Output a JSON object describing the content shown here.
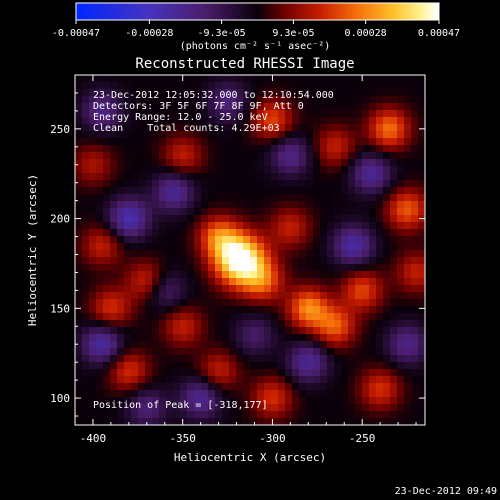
{
  "chart_data": {
    "type": "heatmap",
    "title": "Reconstructed RHESSI Image",
    "xlabel": "Heliocentric X (arcsec)",
    "ylabel": "Heliocentric Y (arcsec)",
    "xlim": [
      -410,
      -215
    ],
    "ylim": [
      85,
      280
    ],
    "x_ticks": [
      "-400",
      "-350",
      "-300",
      "-250"
    ],
    "x_tick_values": [
      -400,
      -350,
      -300,
      -250
    ],
    "y_ticks": [
      "100",
      "150",
      "200",
      "250"
    ],
    "y_tick_values": [
      100,
      150,
      200,
      250
    ],
    "colorbar": {
      "range": [
        -0.00047,
        0.00047
      ],
      "tick_labels": [
        "-0.00047",
        "-0.00028",
        "-9.3e-05",
        "9.3e-05",
        "0.00028",
        "0.00047"
      ],
      "tick_values": [
        -0.00047,
        -0.00028,
        -9.3e-05,
        9.3e-05,
        0.00028,
        0.00047
      ],
      "unit_label": "(photons cm⁻² s⁻¹ asec⁻²)"
    },
    "annotations": {
      "time_range": "23-Dec-2012 12:05:32.000 to 12:10:54.000",
      "detectors": "Detectors: 3F 5F 6F 7F 8F 9F, Att 0",
      "energy": "Energy Range: 12.0 - 25.0 keV",
      "algorithm": "Clean    Total counts: 4.29E+03",
      "peak": "Position of Peak = [-318,177]"
    },
    "peak_position": [
      -318,
      177
    ],
    "blobs": [
      {
        "x": -318,
        "y": 177,
        "v": 1.0
      },
      {
        "x": -330,
        "y": 190,
        "v": 0.45
      },
      {
        "x": -305,
        "y": 165,
        "v": 0.4
      },
      {
        "x": -280,
        "y": 150,
        "v": 0.55
      },
      {
        "x": -265,
        "y": 140,
        "v": 0.45
      },
      {
        "x": -250,
        "y": 160,
        "v": 0.4
      },
      {
        "x": -235,
        "y": 250,
        "v": 0.5
      },
      {
        "x": -225,
        "y": 205,
        "v": 0.45
      },
      {
        "x": -390,
        "y": 150,
        "v": 0.35
      },
      {
        "x": -370,
        "y": 165,
        "v": 0.35
      },
      {
        "x": -395,
        "y": 185,
        "v": 0.3
      },
      {
        "x": -350,
        "y": 235,
        "v": 0.3
      },
      {
        "x": -300,
        "y": 255,
        "v": 0.4
      },
      {
        "x": -265,
        "y": 240,
        "v": 0.3
      },
      {
        "x": -380,
        "y": 115,
        "v": 0.35
      },
      {
        "x": -330,
        "y": 115,
        "v": 0.3
      },
      {
        "x": -300,
        "y": 100,
        "v": 0.35
      },
      {
        "x": -240,
        "y": 105,
        "v": 0.35
      },
      {
        "x": -290,
        "y": 195,
        "v": 0.3
      },
      {
        "x": -350,
        "y": 140,
        "v": 0.3
      },
      {
        "x": -220,
        "y": 170,
        "v": 0.3
      },
      {
        "x": -400,
        "y": 230,
        "v": 0.25
      },
      {
        "x": -380,
        "y": 200,
        "v": -0.5
      },
      {
        "x": -395,
        "y": 130,
        "v": -0.45
      },
      {
        "x": -355,
        "y": 215,
        "v": -0.4
      },
      {
        "x": -340,
        "y": 100,
        "v": -0.4
      },
      {
        "x": -290,
        "y": 235,
        "v": -0.35
      },
      {
        "x": -255,
        "y": 185,
        "v": -0.45
      },
      {
        "x": -245,
        "y": 225,
        "v": -0.4
      },
      {
        "x": -280,
        "y": 120,
        "v": -0.4
      },
      {
        "x": -360,
        "y": 160,
        "v": -0.3
      },
      {
        "x": -395,
        "y": 260,
        "v": -0.35
      },
      {
        "x": -325,
        "y": 265,
        "v": -0.3
      },
      {
        "x": -225,
        "y": 130,
        "v": -0.35
      },
      {
        "x": -310,
        "y": 135,
        "v": -0.25
      },
      {
        "x": -370,
        "y": 95,
        "v": -0.3
      }
    ]
  },
  "footer": {
    "timestamp": "23-Dec-2012 09:49"
  }
}
